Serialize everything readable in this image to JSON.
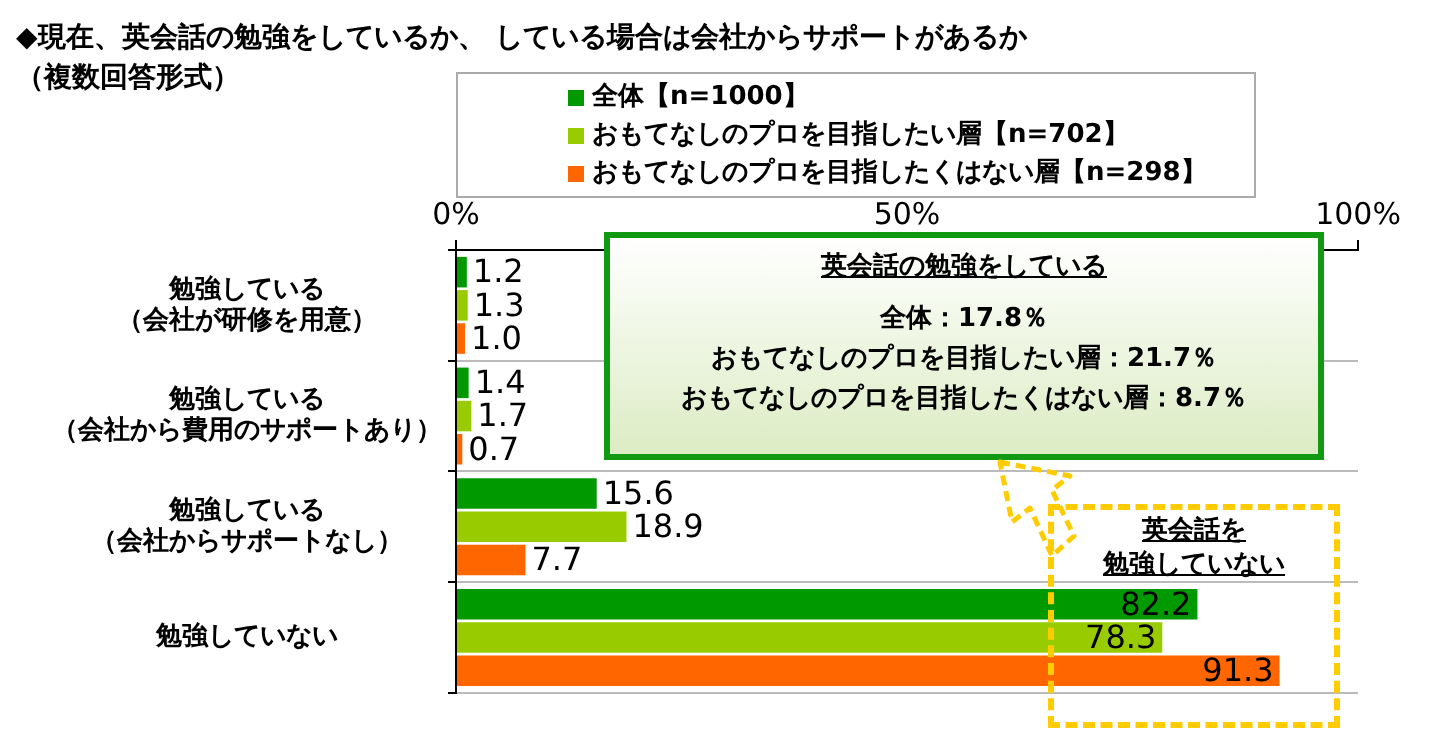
{
  "chart_data": {
    "type": "bar",
    "orientation": "horizontal",
    "title": "◆現在、英会話の勉強をしているか、 している場合は会社からサポートがあるか",
    "subtitle": "（複数回答形式）",
    "categories": [
      "勉強している（会社が研修を用意）",
      "勉強している（会社から費用のサポートあり）",
      "勉強している（会社からサポートなし）",
      "勉強していない"
    ],
    "series": [
      {
        "name": "全体【n=1000】",
        "color": "#009900",
        "values": [
          1.2,
          1.4,
          15.6,
          82.2
        ],
        "value_labels": [
          "1.2",
          "1.4",
          "15.6",
          "82.2"
        ]
      },
      {
        "name": "おもてなしのプロを目指したい層【n=702】",
        "color": "#99cc00",
        "values": [
          1.3,
          1.7,
          18.9,
          78.3
        ],
        "value_labels": [
          "1.3",
          "1.7",
          "18.9",
          "78.3"
        ]
      },
      {
        "name": "おもてなしのプロを目指したくはない層【n=298】",
        "color": "#ff6600",
        "values": [
          1.0,
          0.7,
          7.7,
          91.3
        ],
        "value_labels": [
          "1.0",
          "0.7",
          "7.7",
          "91.3"
        ]
      }
    ],
    "xlim": [
      0,
      100
    ],
    "xticks": [
      {
        "value": 0,
        "label": "0%"
      },
      {
        "value": 50,
        "label": "50%"
      },
      {
        "value": 100,
        "label": "100%"
      }
    ],
    "grid": "y",
    "legend": "top",
    "annotations": [
      "英会話の勉強をしている",
      "全体：17.8％",
      "おもてなしのプロを目指したい層：21.7％",
      "おもてなしのプロを目指したくはない層：8.7％",
      "英会話を",
      "勉強していない"
    ]
  }
}
